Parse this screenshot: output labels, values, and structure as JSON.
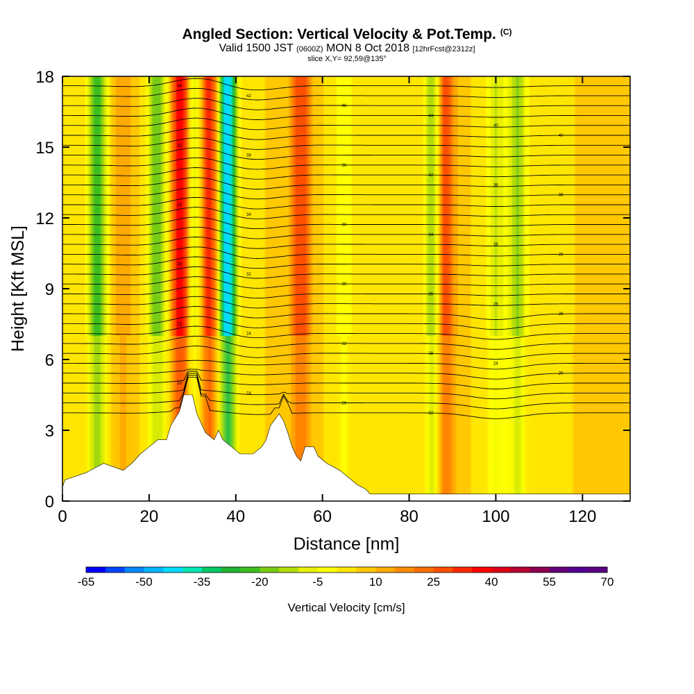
{
  "header": {
    "title": "Angled Section: Vertical Velocity & Pot.Temp.",
    "copyright": "(C)",
    "valid_prefix": "Valid 1500 JST",
    "zulu": "(0600Z)",
    "valid_date": "MON 8 Oct 2018",
    "forecast": "[12hrFcst@2312z]",
    "slice": "slice X,Y= 92,59@135°"
  },
  "chart_data": {
    "type": "heatmap",
    "xlabel": "Distance [nm]",
    "ylabel": "Height [Kft MSL]",
    "xlim": [
      0,
      131
    ],
    "ylim": [
      0,
      18
    ],
    "x_ticks": [
      0,
      20,
      40,
      60,
      80,
      100,
      120
    ],
    "y_ticks": [
      0,
      3,
      6,
      9,
      12,
      15,
      18
    ],
    "colorbar": {
      "label": "Vertical Velocity [cm/s]",
      "range": [
        -65,
        70
      ],
      "step": 5,
      "tick_labels": [
        "-65",
        "-50",
        "-35",
        "-20",
        "-5",
        "10",
        "25",
        "40",
        "55",
        "70"
      ],
      "colors": [
        "#0000ff",
        "#0044ff",
        "#0088ff",
        "#00b4ff",
        "#00dcff",
        "#00e6b4",
        "#00c864",
        "#1eb432",
        "#3cbe1e",
        "#78cc14",
        "#b4dc0a",
        "#e6f000",
        "#ffff00",
        "#ffe600",
        "#ffc800",
        "#ffaa00",
        "#ff8c00",
        "#ff6e00",
        "#ff5000",
        "#ff2800",
        "#ff0000",
        "#dc0014",
        "#b40032",
        "#8c0050",
        "#640078",
        "#500090",
        "#5a0082"
      ]
    },
    "features": [
      {
        "x": 8,
        "w": -25,
        "note": "descent band"
      },
      {
        "x": 14,
        "w": 15
      },
      {
        "x": 22,
        "w": -20
      },
      {
        "x": 27.5,
        "w": 45
      },
      {
        "x": 30,
        "w": -15
      },
      {
        "x": 34,
        "w": 35
      },
      {
        "x": 38,
        "w": -45
      },
      {
        "x": 55,
        "w": 30
      },
      {
        "x": 65,
        "w": -5
      },
      {
        "x": 86,
        "w": -25
      },
      {
        "x": 88,
        "w": 40
      },
      {
        "x": 100,
        "w": -10
      },
      {
        "x": 105,
        "w": -15
      }
    ],
    "terrain_kft": [
      [
        0,
        0.6
      ],
      [
        0.6,
        0.9
      ],
      [
        5.4,
        1.2
      ],
      [
        9.5,
        1.6
      ],
      [
        14,
        1.3
      ],
      [
        16,
        1.6
      ],
      [
        18,
        2.0
      ],
      [
        20,
        2.3
      ],
      [
        22,
        2.6
      ],
      [
        24,
        2.6
      ],
      [
        25,
        3.2
      ],
      [
        27,
        3.8
      ],
      [
        28,
        4.5
      ],
      [
        30,
        4.5
      ],
      [
        31,
        3.7
      ],
      [
        33,
        2.9
      ],
      [
        35,
        2.6
      ],
      [
        36,
        3.0
      ],
      [
        37,
        2.6
      ],
      [
        39,
        2.3
      ],
      [
        41,
        2.0
      ],
      [
        44,
        2.0
      ],
      [
        46,
        2.3
      ],
      [
        47,
        2.6
      ],
      [
        48,
        3.2
      ],
      [
        50,
        3.7
      ],
      [
        51,
        3.4
      ],
      [
        52,
        2.9
      ],
      [
        53,
        2.3
      ],
      [
        54,
        1.9
      ],
      [
        55,
        1.7
      ],
      [
        56,
        2.3
      ],
      [
        58,
        2.3
      ],
      [
        59,
        1.9
      ],
      [
        61,
        1.6
      ],
      [
        64,
        1.3
      ],
      [
        66,
        1.0
      ],
      [
        68,
        0.7
      ],
      [
        70,
        0.5
      ],
      [
        71,
        0.3
      ],
      [
        75,
        0.3
      ],
      [
        80,
        0.3
      ],
      [
        84,
        0.3
      ],
      [
        90,
        0.3
      ],
      [
        100,
        0.3
      ],
      [
        110,
        0.3
      ],
      [
        120,
        0.3
      ],
      [
        126,
        0.3
      ],
      [
        131,
        0.3
      ]
    ],
    "isentrope_labels": [
      "44",
      "42",
      "46",
      "44",
      "40",
      "40",
      "42",
      "38",
      "36",
      "42",
      "36",
      "38",
      "32",
      "34",
      "30",
      "34",
      "28",
      "28",
      "30",
      "32",
      "30",
      "26",
      "26",
      "26",
      "22",
      "24",
      "22",
      "28",
      "24",
      "20",
      "20",
      "24",
      "26",
      "22",
      "18",
      "20",
      "26"
    ]
  }
}
